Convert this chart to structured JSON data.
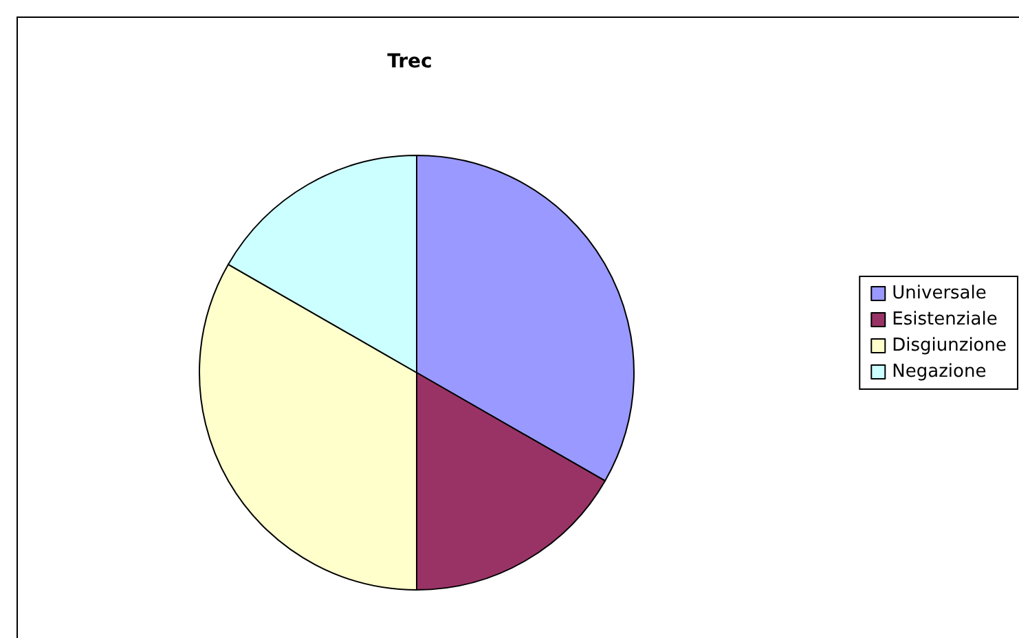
{
  "chart_data": {
    "type": "pie",
    "title": "Trec",
    "categories": [
      "Universale",
      "Esistenziale",
      "Disgiunzione",
      "Negazione"
    ],
    "values": [
      33.3,
      16.7,
      33.3,
      16.7
    ],
    "colors": [
      "#9999ff",
      "#993366",
      "#ffffcc",
      "#ccffff"
    ],
    "legend": "right"
  }
}
